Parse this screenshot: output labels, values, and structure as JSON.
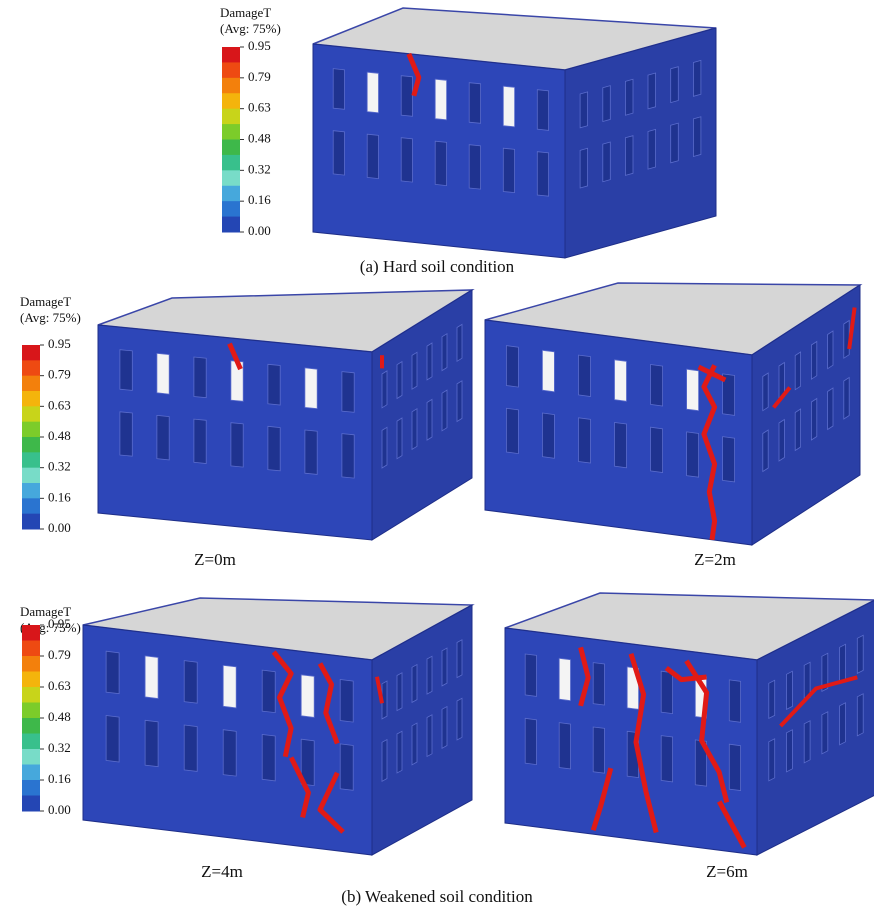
{
  "legends": [
    {
      "title": "DamageT",
      "subtitle": "(Avg: 75%)",
      "ticks": [
        "0.95",
        "0.79",
        "0.63",
        "0.48",
        "0.32",
        "0.16",
        "0.00"
      ]
    },
    {
      "title": "DamageT",
      "subtitle": "(Avg: 75%)",
      "ticks": [
        "0.95",
        "0.79",
        "0.63",
        "0.48",
        "0.32",
        "0.16",
        "0.00"
      ]
    },
    {
      "title": "DamageT",
      "subtitle": "(Avg: 75%)",
      "ticks": [
        "0.95",
        "0.79",
        "0.63",
        "0.48",
        "0.32",
        "0.16",
        "0.00"
      ]
    }
  ],
  "legend_colors": [
    "#d8161a",
    "#ee4a12",
    "#f3800c",
    "#f4b40c",
    "#c8d41a",
    "#7ccc2a",
    "#3eb84a",
    "#38c08c",
    "#78dcc8",
    "#46a8dc",
    "#2a74d0",
    "#2446b4"
  ],
  "captions": {
    "a": "(a) Hard soil condition",
    "b": "(b) Weakened soil condition"
  },
  "views": [
    "Z=0m",
    "Z=2m",
    "Z=4m",
    "Z=6m"
  ]
}
